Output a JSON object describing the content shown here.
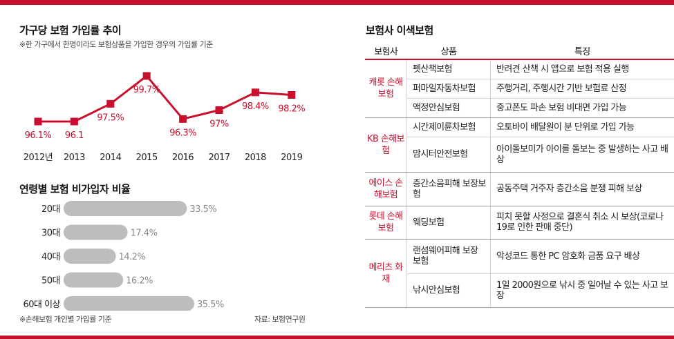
{
  "line_section": {
    "title": "가구당 보험 가입률 추이",
    "subtitle": "※한 가구에서 한명이라도 보험상품을 가입한 경우의 가입률 기준"
  },
  "bar_section": {
    "title": "연령별 보험 비가입자 비율",
    "footnote": "※손해보험 개인별 가입률 기준",
    "source": "자료: 보험연구원"
  },
  "table_section": {
    "title": "보험사 이색보험",
    "headers": [
      "보험사",
      "상품",
      "특징"
    ],
    "rows": [
      {
        "product": "펫산책보험",
        "feature": "반려견 산책 시 앱으로 보험 적용 실행"
      },
      {
        "product": "퍼마일자동차보험",
        "feature": "주행거리, 주행시간 기반 보험료 산정"
      },
      {
        "product": "액정안심보험",
        "feature": "중고폰도 파손 보험 비대면 가입 가능"
      },
      {
        "product": "시간제이륜차보험",
        "feature": "오토바이 배달원이 분 단위로 가입 가능"
      },
      {
        "product": "맘시터안전보험",
        "feature": "아이돌보미가 아이를 돌보는 중 발생하는 사고 배상"
      },
      {
        "product": "층간소음피해 보장보험",
        "feature": "공동주택 거주자 층간소음 분쟁 피해 보상"
      },
      {
        "product": "웨딩보험",
        "feature": "피치 못할 사정으로 결혼식 취소 시 보상(코로나19로 인한 판매 중단)"
      },
      {
        "product": "랜섬웨어피해 보장 보험",
        "feature": "악성코드 통한 PC 암호화 금품 요구 배상"
      },
      {
        "product": "낚시안심보험",
        "feature": "1일 2000원으로 낚시 중 일어날 수 있는 사고 보장"
      }
    ],
    "insurers": [
      "캐롯 손해보험",
      "KB 손해보험",
      "에이스 손해보험",
      "롯데 손해보험",
      "메리츠 화재"
    ]
  },
  "colors": {
    "accent": "#c8102e",
    "bar": "#bdbdbd",
    "value_text": "#8a8a8a"
  },
  "chart_data": [
    {
      "type": "line",
      "title": "가구당 보험 가입률 추이",
      "x": [
        "2012년",
        "2013",
        "2014",
        "2015",
        "2016",
        "2017",
        "2018",
        "2019"
      ],
      "values": [
        96.1,
        96.1,
        97.5,
        99.7,
        96.3,
        97.0,
        98.4,
        98.2
      ],
      "value_labels": [
        "96.1%",
        "96.1",
        "97.5%",
        "99.7%",
        "96.3%",
        "97%",
        "98.4%",
        "98.2%"
      ],
      "ylim": [
        90,
        100
      ],
      "grid": false,
      "color": "#c8102e"
    },
    {
      "type": "bar",
      "orientation": "horizontal",
      "title": "연령별 보험 비가입자 비율",
      "categories": [
        "20대",
        "30대",
        "40대",
        "50대",
        "60대 이상"
      ],
      "values": [
        33.5,
        17.4,
        14.2,
        16.2,
        35.5
      ],
      "value_labels": [
        "33.5%",
        "17.4%",
        "14.2%",
        "16.2%",
        "35.5%"
      ],
      "xlim": [
        0,
        36
      ],
      "color": "#bdbdbd"
    }
  ]
}
